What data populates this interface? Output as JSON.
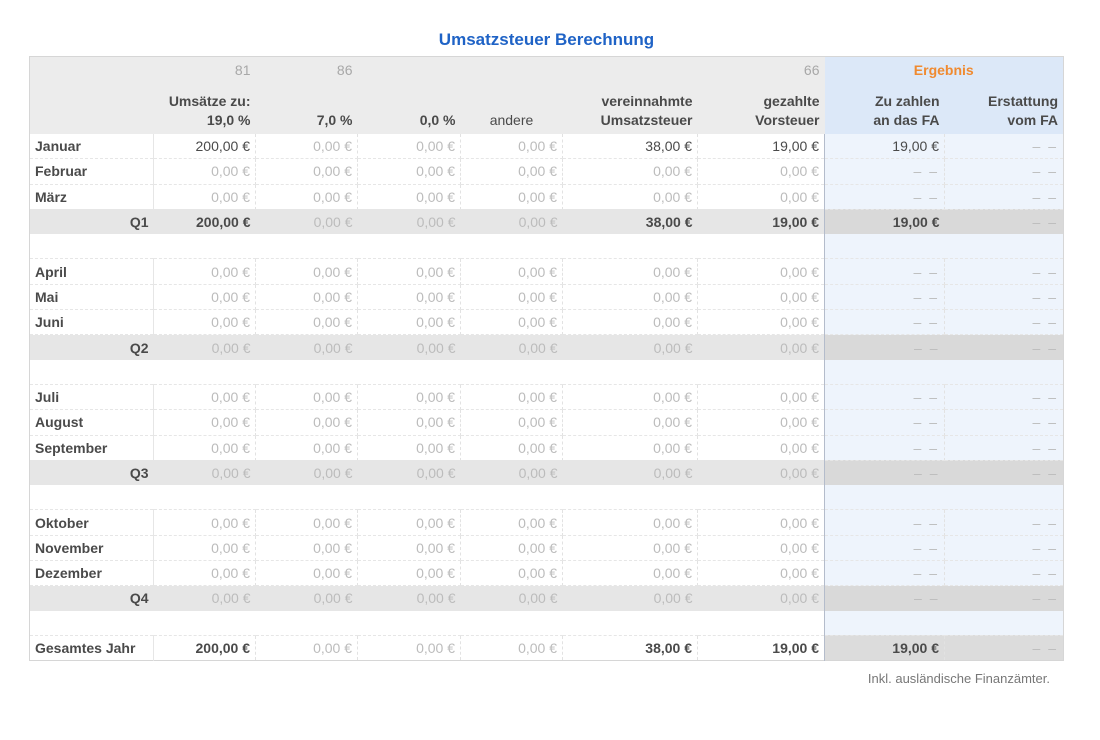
{
  "title": "Umsatzsteuer Berechnung",
  "header": {
    "codes": [
      "81",
      "86",
      "",
      "",
      "",
      "66"
    ],
    "result_label": "Ergebnis",
    "columns": [
      "Umsätze zu:\n19,0 %",
      "7,0 %",
      "0,0 %",
      "andere",
      "vereinnahmte\nUmsatzsteuer",
      "gezahlte\nVorsteuer",
      "Zu zahlen\nan das FA",
      "Erstattung\nvom FA"
    ]
  },
  "quarters": [
    {
      "label": "Q1",
      "months": [
        {
          "name": "Januar",
          "values": [
            "200,00 €",
            "0,00 €",
            "0,00 €",
            "0,00 €",
            "38,00 €",
            "19,00 €",
            "19,00 €",
            "– –"
          ]
        },
        {
          "name": "Februar",
          "values": [
            "0,00 €",
            "0,00 €",
            "0,00 €",
            "0,00 €",
            "0,00 €",
            "0,00 €",
            "– –",
            "– –"
          ]
        },
        {
          "name": "März",
          "values": [
            "0,00 €",
            "0,00 €",
            "0,00 €",
            "0,00 €",
            "0,00 €",
            "0,00 €",
            "– –",
            "– –"
          ]
        }
      ],
      "totals": [
        "200,00 €",
        "0,00 €",
        "0,00 €",
        "0,00 €",
        "38,00 €",
        "19,00 €",
        "19,00 €",
        "– –"
      ]
    },
    {
      "label": "Q2",
      "months": [
        {
          "name": "April",
          "values": [
            "0,00 €",
            "0,00 €",
            "0,00 €",
            "0,00 €",
            "0,00 €",
            "0,00 €",
            "– –",
            "– –"
          ]
        },
        {
          "name": "Mai",
          "values": [
            "0,00 €",
            "0,00 €",
            "0,00 €",
            "0,00 €",
            "0,00 €",
            "0,00 €",
            "– –",
            "– –"
          ]
        },
        {
          "name": "Juni",
          "values": [
            "0,00 €",
            "0,00 €",
            "0,00 €",
            "0,00 €",
            "0,00 €",
            "0,00 €",
            "– –",
            "– –"
          ]
        }
      ],
      "totals": [
        "0,00 €",
        "0,00 €",
        "0,00 €",
        "0,00 €",
        "0,00 €",
        "0,00 €",
        "– –",
        "– –"
      ]
    },
    {
      "label": "Q3",
      "months": [
        {
          "name": "Juli",
          "values": [
            "0,00 €",
            "0,00 €",
            "0,00 €",
            "0,00 €",
            "0,00 €",
            "0,00 €",
            "– –",
            "– –"
          ]
        },
        {
          "name": "August",
          "values": [
            "0,00 €",
            "0,00 €",
            "0,00 €",
            "0,00 €",
            "0,00 €",
            "0,00 €",
            "– –",
            "– –"
          ]
        },
        {
          "name": "September",
          "values": [
            "0,00 €",
            "0,00 €",
            "0,00 €",
            "0,00 €",
            "0,00 €",
            "0,00 €",
            "– –",
            "– –"
          ]
        }
      ],
      "totals": [
        "0,00 €",
        "0,00 €",
        "0,00 €",
        "0,00 €",
        "0,00 €",
        "0,00 €",
        "– –",
        "– –"
      ]
    },
    {
      "label": "Q4",
      "months": [
        {
          "name": "Oktober",
          "values": [
            "0,00 €",
            "0,00 €",
            "0,00 €",
            "0,00 €",
            "0,00 €",
            "0,00 €",
            "– –",
            "– –"
          ]
        },
        {
          "name": "November",
          "values": [
            "0,00 €",
            "0,00 €",
            "0,00 €",
            "0,00 €",
            "0,00 €",
            "0,00 €",
            "– –",
            "– –"
          ]
        },
        {
          "name": "Dezember",
          "values": [
            "0,00 €",
            "0,00 €",
            "0,00 €",
            "0,00 €",
            "0,00 €",
            "0,00 €",
            "– –",
            "– –"
          ]
        }
      ],
      "totals": [
        "0,00 €",
        "0,00 €",
        "0,00 €",
        "0,00 €",
        "0,00 €",
        "0,00 €",
        "– –",
        "– –"
      ]
    }
  ],
  "year": {
    "label": "Gesamtes Jahr",
    "values": [
      "200,00 €",
      "0,00 €",
      "0,00 €",
      "0,00 €",
      "38,00 €",
      "19,00 €",
      "19,00 €",
      "– –"
    ]
  },
  "footnote": "Inkl. ausländische Finanzämter."
}
